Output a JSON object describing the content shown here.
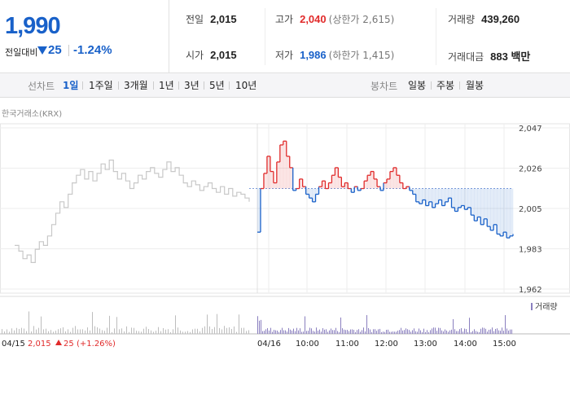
{
  "summary": {
    "price": "1,990",
    "change_label": "전일대비",
    "change_value": "25",
    "change_rate": "-1.24%"
  },
  "stats": {
    "prev_close": {
      "label": "전일",
      "value": "2,015"
    },
    "open": {
      "label": "시가",
      "value": "2,015"
    },
    "high": {
      "label": "고가",
      "value": "2,040",
      "sub": "(상한가 2,615)"
    },
    "low": {
      "label": "저가",
      "value": "1,986",
      "sub": "(하한가 1,415)"
    },
    "volume": {
      "label": "거래량",
      "value": "439,260"
    },
    "amount": {
      "label": "거래대금",
      "value": "883 백만"
    }
  },
  "tabs": {
    "line_label": "선차트",
    "line_items": [
      "1일",
      "1주일",
      "3개월",
      "1년",
      "3년",
      "5년",
      "10년"
    ],
    "active": "1일",
    "candle_label": "봉차트",
    "candle_items": [
      "일봉",
      "주봉",
      "월봉"
    ]
  },
  "exchange_label": "한국거래소(KRX)",
  "colors": {
    "up": "#e12b2b",
    "down": "#1961c9",
    "prev": "#c8c8c8",
    "volume": "#8a7fbf"
  },
  "chart_data": {
    "type": "line",
    "y_ticks": [
      "2,047",
      "2,026",
      "2,005",
      "1,983",
      "1,962"
    ],
    "ylim": [
      1962,
      2047
    ],
    "baseline": 2015,
    "x_ticks": [
      "04/16",
      "10:00",
      "11:00",
      "12:00",
      "13:00",
      "14:00",
      "15:00"
    ],
    "prev_day_label": "04/15",
    "prev_day_close": "2,015",
    "prev_day_change": "25",
    "prev_day_rate": "(+1.26%)",
    "volume_label": "거래량",
    "prev_series": [
      1985,
      1982,
      1978,
      1980,
      1976,
      1983,
      1987,
      1985,
      1990,
      1996,
      2002,
      2008,
      2005,
      2012,
      2018,
      2022,
      2025,
      2020,
      2024,
      2019,
      2023,
      2028,
      2025,
      2030,
      2024,
      2020,
      2023,
      2019,
      2015,
      2018,
      2022,
      2020,
      2024,
      2026,
      2023,
      2021,
      2025,
      2029,
      2024,
      2026,
      2022,
      2018,
      2016,
      2019,
      2017,
      2014,
      2016,
      2018,
      2015,
      2013,
      2016,
      2012,
      2015,
      2011,
      2013,
      2012,
      2010,
      2008
    ],
    "today_series": [
      1992,
      2015,
      2023,
      2032,
      2024,
      2018,
      2029,
      2038,
      2040,
      2032,
      2026,
      2014,
      2015,
      2020,
      2016,
      2012,
      2010,
      2008,
      2012,
      2016,
      2019,
      2015,
      2018,
      2022,
      2026,
      2021,
      2016,
      2018,
      2015,
      2013,
      2016,
      2014,
      2015,
      2019,
      2022,
      2024,
      2020,
      2016,
      2014,
      2018,
      2020,
      2024,
      2026,
      2022,
      2018,
      2015,
      2016,
      2014,
      2012,
      2008,
      2007,
      2009,
      2006,
      2008,
      2005,
      2007,
      2009,
      2006,
      2008,
      2010,
      2005,
      2003,
      2005,
      2006,
      2004,
      2005,
      2001,
      1998,
      2000,
      1996,
      1999,
      1995,
      1993,
      1996,
      1991,
      1990,
      1992,
      1989,
      1990,
      1991
    ]
  }
}
